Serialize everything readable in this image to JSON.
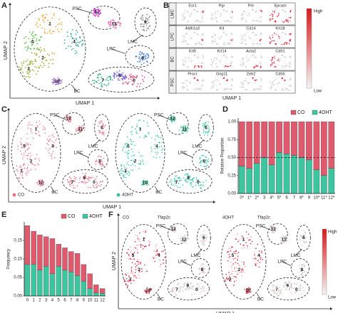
{
  "panels": {
    "A": {
      "letter": "A",
      "x_label": "UMAP 1",
      "y_label": "UMAP 2",
      "regions": [
        "PSC",
        "LMC",
        "LPC",
        "BC"
      ],
      "clusters": [
        "0",
        "1",
        "2",
        "3",
        "4",
        "5",
        "6",
        "7",
        "8",
        "9",
        "10",
        "11",
        "12"
      ],
      "colors": [
        "#e0507c",
        "#f0a030",
        "#a8a83a",
        "#98b040",
        "#3aa6a0",
        "#5cc050",
        "#909090",
        "#30b080",
        "#4a86d6",
        "#7a6ee0",
        "#a070d0",
        "#f07cc0",
        "#d848d8"
      ]
    },
    "B": {
      "letter": "B",
      "x_label": "UMAP 1",
      "high": "High",
      "low": "Low",
      "rows": [
        {
          "label": "LMC",
          "genes": [
            "Esr1",
            "Pgr",
            "Prlr",
            "Epcam"
          ]
        },
        {
          "label": "LPC",
          "genes": [
            "Aldh1a3",
            "Kit",
            "Cd14",
            "Krt18"
          ]
        },
        {
          "label": "BC",
          "genes": [
            "Krt5",
            "Krt14",
            "Acta2",
            "Cdh1"
          ]
        },
        {
          "label": "PSC",
          "genes": [
            "Procr",
            "Gng11",
            "Zeb2",
            "Cdh5"
          ]
        }
      ]
    },
    "C": {
      "letter": "C",
      "x_label": "UMAP 1",
      "y_label": "UMAP 2",
      "plots": [
        {
          "legend": "CO",
          "color": "#e8788c",
          "regions": [
            "PSC",
            "LMC",
            "LPC",
            "BC"
          ],
          "clusters": [
            "0",
            "1",
            "2",
            "3",
            "4",
            "5",
            "6",
            "7",
            "8",
            "9",
            "10",
            "11",
            "12"
          ]
        },
        {
          "legend": "4OHT",
          "color": "#3cc6a0",
          "regions": [
            "PSC",
            "LMC",
            "LPC",
            "BC"
          ],
          "clusters": [
            "0",
            "1",
            "2",
            "3",
            "4",
            "5",
            "6",
            "7",
            "8",
            "9",
            "10",
            "11",
            "12"
          ]
        }
      ]
    },
    "F": {
      "letter": "F",
      "x_label": "UMAP 1",
      "y_label": "UMAP 2",
      "high": "High",
      "low": "Low",
      "plots": [
        {
          "condition": "CO",
          "gene": "Tfap2c",
          "regions": [
            "PSC",
            "LMC",
            "LPC",
            "BC"
          ],
          "clusters": [
            "0",
            "1",
            "2",
            "3",
            "4",
            "5",
            "6",
            "7",
            "8",
            "9",
            "10",
            "11",
            "12"
          ]
        },
        {
          "condition": "4OHT",
          "gene": "Tfap2c",
          "regions": [
            "PSC",
            "LMC",
            "LPC",
            "BC"
          ],
          "clusters": [
            "0",
            "1",
            "2",
            "3",
            "4",
            "5",
            "6",
            "7",
            "8",
            "9",
            "10",
            "11",
            "12"
          ]
        }
      ]
    }
  },
  "chart_data": [
    {
      "type": "bar",
      "stacked": true,
      "letter": "D",
      "y_label": "Relative Proportion",
      "categories": [
        "0*",
        "1*",
        "2*",
        "3",
        "4*",
        "5*",
        "6",
        "7",
        "8*",
        "9",
        "10*",
        "11*",
        "12*"
      ],
      "series": [
        {
          "name": "4OHT",
          "color": "#3cc6a0",
          "values": [
            0.38,
            0.35,
            0.42,
            0.5,
            0.4,
            0.57,
            0.55,
            0.53,
            0.5,
            0.47,
            0.33,
            0.25,
            0.35
          ]
        },
        {
          "name": "CO",
          "color": "#e05a6e",
          "values": [
            0.62,
            0.65,
            0.58,
            0.5,
            0.6,
            0.43,
            0.45,
            0.47,
            0.5,
            0.53,
            0.67,
            0.75,
            0.65
          ]
        }
      ],
      "ylim": [
        0,
        1.05
      ],
      "yticks": [
        {
          "value": 0,
          "label": "0.00"
        },
        {
          "value": 0.25,
          "label": "0.25"
        },
        {
          "value": 0.5,
          "label": "0.50"
        },
        {
          "value": 0.75,
          "label": "0.75"
        },
        {
          "value": 1,
          "label": "1.00"
        }
      ],
      "reference_line": 0.5,
      "legend": "top-right"
    },
    {
      "type": "bar",
      "stacked": true,
      "letter": "E",
      "y_label": "Frequency",
      "categories": [
        "0",
        "1",
        "2",
        "3",
        "4",
        "5",
        "6",
        "7",
        "8",
        "9",
        "10",
        "11",
        "12"
      ],
      "series": [
        {
          "name": "4OHT",
          "color": "#3cc6a0",
          "values": [
            0.085,
            0.085,
            0.07,
            0.08,
            0.06,
            0.08,
            0.07,
            0.065,
            0.055,
            0.04,
            0.02,
            0.008,
            0.007
          ]
        },
        {
          "name": "CO",
          "color": "#e05a6e",
          "values": [
            0.105,
            0.09,
            0.095,
            0.08,
            0.095,
            0.06,
            0.06,
            0.055,
            0.06,
            0.045,
            0.04,
            0.022,
            0.013
          ]
        }
      ],
      "ylim": [
        0,
        0.2
      ],
      "yticks": [
        {
          "value": 0,
          "label": "0.00"
        },
        {
          "value": 0.05,
          "label": "0.05"
        },
        {
          "value": 0.1,
          "label": "0.10"
        },
        {
          "value": 0.15,
          "label": "0.15"
        }
      ],
      "legend": "top-right"
    }
  ]
}
